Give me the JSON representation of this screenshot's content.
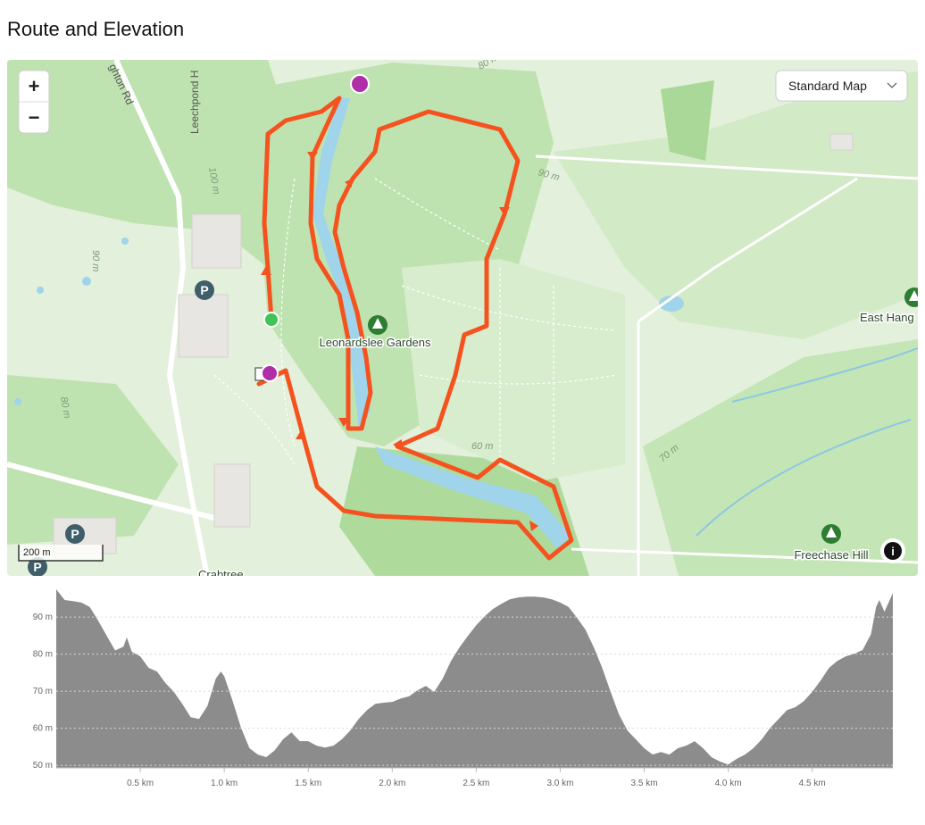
{
  "header": {
    "title": "Route and Elevation"
  },
  "map": {
    "map_style": "Standard Map",
    "zoom_in": "+",
    "zoom_out": "−",
    "scale": "200 m",
    "info": "i",
    "places": [
      "Leonardslee Gardens",
      "East Hang",
      "Freechase Hill",
      "Crabtree"
    ],
    "roads": [
      "ghton Rd",
      "Leechpond H"
    ],
    "contours": [
      "80 m",
      "90 m",
      "100 m",
      "90 m",
      "80 m",
      "60 m",
      "70 m"
    ],
    "parking": [
      "P",
      "P",
      "P"
    ]
  },
  "chart_data": {
    "type": "area",
    "color": "#8c8c8c",
    "grid": true,
    "x": [
      0,
      0.05,
      0.1,
      0.15,
      0.2,
      0.25,
      0.3,
      0.35,
      0.4,
      0.42,
      0.45,
      0.5,
      0.55,
      0.6,
      0.65,
      0.7,
      0.75,
      0.8,
      0.85,
      0.9,
      0.95,
      0.98,
      1.0,
      1.05,
      1.1,
      1.15,
      1.2,
      1.25,
      1.3,
      1.35,
      1.4,
      1.45,
      1.5,
      1.55,
      1.6,
      1.65,
      1.7,
      1.75,
      1.8,
      1.85,
      1.9,
      1.95,
      2.0,
      2.05,
      2.1,
      2.15,
      2.2,
      2.25,
      2.3,
      2.35,
      2.4,
      2.45,
      2.5,
      2.55,
      2.6,
      2.65,
      2.7,
      2.75,
      2.8,
      2.85,
      2.9,
      2.95,
      3.0,
      3.05,
      3.1,
      3.15,
      3.2,
      3.25,
      3.3,
      3.35,
      3.4,
      3.45,
      3.5,
      3.55,
      3.6,
      3.65,
      3.7,
      3.75,
      3.8,
      3.85,
      3.9,
      3.95,
      4.0,
      4.05,
      4.1,
      4.15,
      4.2,
      4.25,
      4.3,
      4.35,
      4.4,
      4.45,
      4.5,
      4.55,
      4.6,
      4.65,
      4.7,
      4.75,
      4.8,
      4.85,
      4.88,
      4.9,
      4.93,
      4.98
    ],
    "values": [
      97.5,
      94.6,
      94.3,
      93.9,
      92.7,
      89,
      85,
      81,
      82,
      84.5,
      80.6,
      79.4,
      76.3,
      75.3,
      72.2,
      69.8,
      66.6,
      63,
      62.5,
      66,
      73.4,
      75.3,
      74,
      67.3,
      60.1,
      54.6,
      52.9,
      52.2,
      54,
      57,
      58.9,
      56.5,
      56.5,
      55.3,
      54.8,
      55.3,
      57,
      59.4,
      62.5,
      64.9,
      66.6,
      66.9,
      67.1,
      68,
      68.6,
      70.2,
      71.4,
      69.8,
      73.4,
      78.2,
      81.8,
      84.9,
      87.8,
      90.2,
      92.2,
      93.6,
      94.8,
      95.3,
      95.5,
      95.5,
      95.3,
      94.8,
      93.9,
      92.7,
      89.8,
      86.6,
      81.8,
      76.3,
      69.8,
      63.7,
      59.4,
      57,
      54.6,
      52.9,
      53.6,
      52.9,
      54.6,
      55.3,
      56.5,
      54.6,
      52.2,
      51,
      50.2,
      51.7,
      52.9,
      54.6,
      57,
      60.1,
      62.5,
      64.9,
      65.7,
      67.3,
      69.8,
      72.9,
      76.3,
      78.2,
      79.4,
      80.1,
      81.1,
      85.4,
      92.7,
      94.6,
      91.4,
      96.5
    ],
    "xlim": [
      0,
      4.98
    ],
    "ylim": [
      49.3,
      97.5
    ],
    "yticks": [
      {
        "value": 50,
        "label": "50 m"
      },
      {
        "value": 60,
        "label": "60 m"
      },
      {
        "value": 70,
        "label": "70 m"
      },
      {
        "value": 80,
        "label": "80 m"
      },
      {
        "value": 90,
        "label": "90 m"
      }
    ],
    "xticks": [
      {
        "value": 0.5,
        "label": "0.5 km"
      },
      {
        "value": 1.0,
        "label": "1.0 km"
      },
      {
        "value": 1.5,
        "label": "1.5 km"
      },
      {
        "value": 2.0,
        "label": "2.0 km"
      },
      {
        "value": 2.5,
        "label": "2.5 km"
      },
      {
        "value": 3.0,
        "label": "3.0 km"
      },
      {
        "value": 3.5,
        "label": "3.5 km"
      },
      {
        "value": 4.0,
        "label": "4.0 km"
      },
      {
        "value": 4.5,
        "label": "4.5 km"
      }
    ]
  }
}
